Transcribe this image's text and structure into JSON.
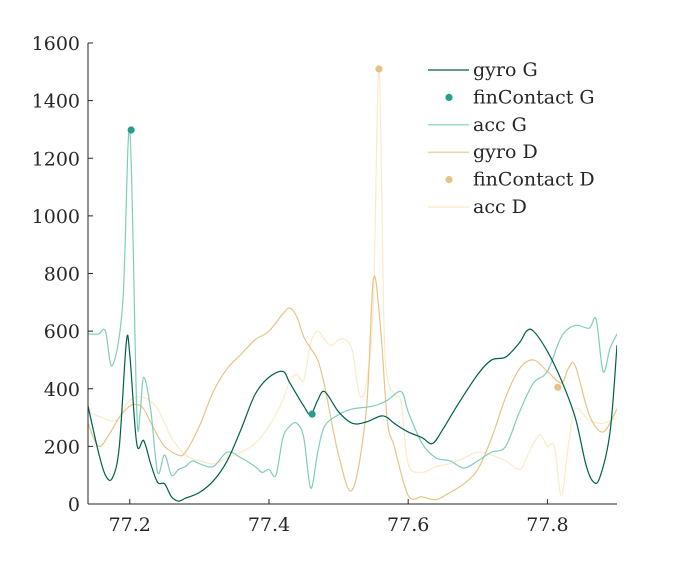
{
  "chart_data": {
    "type": "line",
    "title": "",
    "xlabel": "",
    "ylabel": "",
    "xlim": [
      77.14,
      77.9
    ],
    "ylim": [
      0,
      1600
    ],
    "xticks": [
      77.2,
      77.4,
      77.6,
      77.8
    ],
    "xtick_labels": [
      "77.2",
      "77.4",
      "77.6",
      "77.8"
    ],
    "yticks": [
      0,
      200,
      400,
      600,
      800,
      1000,
      1200,
      1400,
      1600
    ],
    "ytick_labels": [
      "0",
      "200",
      "400",
      "600",
      "800",
      "1000",
      "1200",
      "1400",
      "1600"
    ],
    "grid": false,
    "legend_position": "top-right",
    "series": [
      {
        "name": "gyro G",
        "kind": "line",
        "color": "#005f4b",
        "x": [
          77.14,
          77.155,
          77.165,
          77.175,
          77.185,
          77.195,
          77.2,
          77.21,
          77.22,
          77.23,
          77.24,
          77.25,
          77.26,
          77.27,
          77.28,
          77.3,
          77.32,
          77.34,
          77.36,
          77.38,
          77.4,
          77.42,
          77.43,
          77.45,
          77.46,
          77.47,
          77.48,
          77.5,
          77.52,
          77.54,
          77.56,
          77.57,
          77.58,
          77.6,
          77.62,
          77.635,
          77.65,
          77.67,
          77.7,
          77.72,
          77.74,
          77.76,
          77.77,
          77.78,
          77.8,
          77.82,
          77.84,
          77.855,
          77.865,
          77.875,
          77.89,
          77.9
        ],
        "y": [
          340,
          180,
          100,
          90,
          200,
          560,
          520,
          210,
          220,
          140,
          75,
          70,
          25,
          10,
          20,
          40,
          80,
          150,
          260,
          380,
          440,
          460,
          420,
          340,
          310,
          360,
          390,
          320,
          280,
          285,
          305,
          300,
          280,
          250,
          230,
          210,
          260,
          340,
          450,
          500,
          510,
          560,
          600,
          600,
          530,
          430,
          300,
          140,
          80,
          90,
          250,
          550
        ]
      },
      {
        "name": "finContact G",
        "kind": "marker",
        "color": "#2a9d8f",
        "x": [
          77.202,
          77.462
        ],
        "y": [
          1298,
          312
        ]
      },
      {
        "name": "acc G",
        "kind": "line",
        "color": "#7fcdbb",
        "x": [
          77.14,
          77.155,
          77.165,
          77.175,
          77.19,
          77.2,
          77.21,
          77.215,
          77.22,
          77.23,
          77.24,
          77.25,
          77.26,
          77.27,
          77.28,
          77.29,
          77.3,
          77.32,
          77.34,
          77.36,
          77.38,
          77.39,
          77.4,
          77.41,
          77.42,
          77.43,
          77.44,
          77.45,
          77.46,
          77.47,
          77.48,
          77.5,
          77.52,
          77.55,
          77.57,
          77.59,
          77.6,
          77.62,
          77.64,
          77.66,
          77.68,
          77.7,
          77.72,
          77.74,
          77.76,
          77.78,
          77.8,
          77.82,
          77.84,
          77.86,
          77.87,
          77.88,
          77.89,
          77.9
        ],
        "y": [
          590,
          590,
          600,
          480,
          700,
          1298,
          330,
          320,
          440,
          330,
          110,
          170,
          100,
          120,
          130,
          150,
          140,
          130,
          180,
          160,
          130,
          110,
          120,
          100,
          230,
          270,
          280,
          230,
          55,
          180,
          270,
          310,
          330,
          340,
          360,
          390,
          320,
          210,
          160,
          150,
          125,
          150,
          180,
          200,
          320,
          420,
          460,
          580,
          620,
          610,
          640,
          460,
          540,
          590
        ]
      },
      {
        "name": "gyro D",
        "kind": "line",
        "color": "#e6c487",
        "x": [
          77.14,
          77.155,
          77.17,
          77.185,
          77.2,
          77.21,
          77.22,
          77.235,
          77.25,
          77.27,
          77.28,
          77.3,
          77.32,
          77.34,
          77.36,
          77.38,
          77.4,
          77.42,
          77.43,
          77.44,
          77.45,
          77.46,
          77.47,
          77.48,
          77.5,
          77.52,
          77.54,
          77.55,
          77.56,
          77.57,
          77.58,
          77.6,
          77.62,
          77.64,
          77.66,
          77.68,
          77.7,
          77.72,
          77.74,
          77.76,
          77.78,
          77.8,
          77.82,
          77.83,
          77.84,
          77.86,
          77.88,
          77.9
        ],
        "y": [
          280,
          200,
          240,
          300,
          340,
          345,
          330,
          260,
          200,
          170,
          180,
          270,
          390,
          470,
          520,
          570,
          600,
          660,
          680,
          650,
          580,
          540,
          500,
          410,
          170,
          50,
          330,
          780,
          620,
          290,
          200,
          30,
          25,
          15,
          40,
          70,
          120,
          230,
          370,
          470,
          500,
          460,
          420,
          470,
          480,
          310,
          250,
          330
        ]
      },
      {
        "name": "finContact D",
        "kind": "marker",
        "color": "#e6c487",
        "x": [
          77.558,
          77.815
        ],
        "y": [
          1510,
          405
        ]
      },
      {
        "name": "acc D",
        "kind": "line",
        "color": "#faebc8",
        "x": [
          77.14,
          77.16,
          77.18,
          77.2,
          77.22,
          77.24,
          77.26,
          77.28,
          77.3,
          77.32,
          77.34,
          77.36,
          77.38,
          77.4,
          77.42,
          77.43,
          77.44,
          77.45,
          77.46,
          77.47,
          77.48,
          77.49,
          77.5,
          77.51,
          77.52,
          77.53,
          77.54,
          77.55,
          77.558,
          77.565,
          77.57,
          77.58,
          77.59,
          77.6,
          77.62,
          77.64,
          77.66,
          77.68,
          77.7,
          77.72,
          77.74,
          77.76,
          77.77,
          77.78,
          77.79,
          77.8,
          77.81,
          77.82,
          77.83,
          77.84,
          77.86,
          77.88,
          77.9
        ],
        "y": [
          320,
          300,
          290,
          360,
          370,
          330,
          230,
          170,
          150,
          140,
          160,
          180,
          210,
          270,
          360,
          430,
          450,
          430,
          560,
          600,
          570,
          550,
          570,
          570,
          530,
          380,
          420,
          700,
          1510,
          640,
          440,
          380,
          350,
          140,
          110,
          130,
          140,
          160,
          180,
          170,
          150,
          120,
          160,
          210,
          240,
          200,
          200,
          30,
          200,
          330,
          290,
          280,
          300
        ]
      }
    ]
  }
}
